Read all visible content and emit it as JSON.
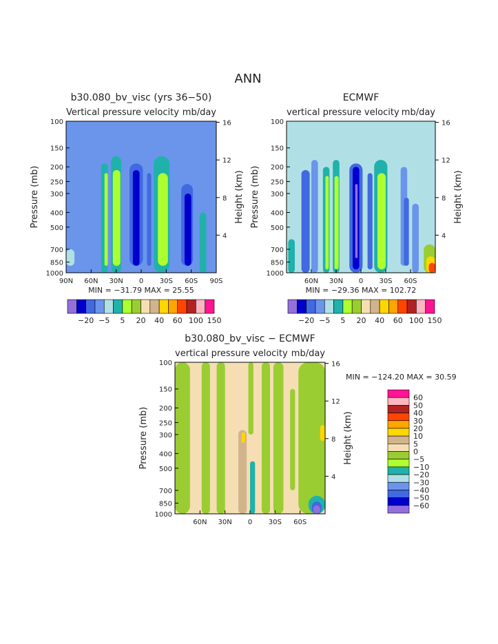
{
  "figure": {
    "title": "ANN"
  },
  "palettes": {
    "field": [
      "#9370DB",
      "#0000CD",
      "#4169E1",
      "#6A95EB",
      "#B0E0E6",
      "#20B2AA",
      "#ADFF2F",
      "#9ACD32",
      "#F5DEB3",
      "#D2B48C",
      "#FFD700",
      "#FFA500",
      "#FF4500",
      "#B22222",
      "#FFB6C1",
      "#FF1493"
    ],
    "diff": [
      "#9370DB",
      "#0000CD",
      "#4169E1",
      "#6A95EB",
      "#B0E0E6",
      "#20B2AA",
      "#ADFF2F",
      "#9ACD32",
      "#F5DEB3",
      "#D2B48C",
      "#FFD700",
      "#FFA500",
      "#FF4500",
      "#B22222",
      "#FFB6C1",
      "#FF1493"
    ]
  },
  "chart_data": [
    {
      "type": "heatmap",
      "title": "b30.080_bv_visc (yrs 36−50)",
      "subtitle_left": "Vertical pressure velocity",
      "subtitle_right": "mb/day",
      "ylabel": "Pressure (mb)",
      "ylabel_right": "Height (km)",
      "xlim": [
        90,
        -90
      ],
      "ylim": [
        1000,
        100
      ],
      "y_scale": "log",
      "xticks": [
        90,
        60,
        30,
        0,
        -30,
        -60,
        -90
      ],
      "xtick_labels": [
        "90N",
        "60N",
        "30N",
        "0",
        "30S",
        "60S",
        "90S"
      ],
      "yticks": [
        100,
        150,
        200,
        250,
        300,
        400,
        500,
        700,
        850,
        1000
      ],
      "right_ticks": [
        16,
        12,
        8,
        4
      ],
      "stats": "MIN = −31.79   MAX =  25.55",
      "colorbar": {
        "orientation": "horizontal",
        "labels": [
          "−20",
          "−5",
          "5",
          "20",
          "40",
          "60",
          "100",
          "150"
        ]
      },
      "bands": [
        {
          "lat": [
            90,
            80
          ],
          "c": 4,
          "p": [
            700,
            900
          ]
        },
        {
          "lat": [
            75,
            68
          ],
          "c": 3,
          "p": [
            250,
            1000
          ]
        },
        {
          "lat": [
            60,
            55
          ],
          "c": 3,
          "p": [
            300,
            1000
          ]
        },
        {
          "lat": [
            48,
            40
          ],
          "c": 5,
          "p": [
            190,
            1000
          ]
        },
        {
          "lat": [
            44,
            40
          ],
          "c": 6,
          "p": [
            220,
            900
          ]
        },
        {
          "lat": [
            36,
            24
          ],
          "c": 5,
          "p": [
            170,
            1000
          ]
        },
        {
          "lat": [
            34,
            25
          ],
          "c": 6,
          "p": [
            210,
            900
          ]
        },
        {
          "lat": [
            14,
            -2
          ],
          "c": 2,
          "p": [
            190,
            900
          ]
        },
        {
          "lat": [
            10,
            2
          ],
          "c": 1,
          "p": [
            210,
            900
          ]
        },
        {
          "lat": [
            -7,
            -12
          ],
          "c": 2,
          "p": [
            220,
            900
          ]
        },
        {
          "lat": [
            -15,
            -34
          ],
          "c": 5,
          "p": [
            170,
            1000
          ]
        },
        {
          "lat": [
            -20,
            -32
          ],
          "c": 6,
          "p": [
            220,
            900
          ]
        },
        {
          "lat": [
            -48,
            -62
          ],
          "c": 2,
          "p": [
            260,
            900
          ]
        },
        {
          "lat": [
            -52,
            -60
          ],
          "c": 1,
          "p": [
            300,
            900
          ]
        },
        {
          "lat": [
            -64,
            -72
          ],
          "c": 3,
          "p": [
            200,
            900
          ]
        },
        {
          "lat": [
            -70,
            -78
          ],
          "c": 5,
          "p": [
            400,
            1000
          ]
        }
      ]
    },
    {
      "type": "heatmap",
      "title": "ECMWF",
      "subtitle_left": "vertical pressure velocity",
      "subtitle_right": "mb/day",
      "ylabel": "Pressure (mb)",
      "ylabel_right": "Height (km)",
      "xlim": [
        90,
        -90
      ],
      "ylim": [
        1000,
        100
      ],
      "y_scale": "log",
      "xticks": [
        60,
        30,
        0,
        -30,
        -60
      ],
      "xtick_labels": [
        "60N",
        "30N",
        "0",
        "30S",
        "60S"
      ],
      "yticks": [
        100,
        150,
        200,
        250,
        300,
        400,
        500,
        700,
        850,
        1000
      ],
      "right_ticks": [
        16,
        12,
        8,
        4
      ],
      "stats": "MIN = −29.36   MAX = 102.72",
      "colorbar": {
        "orientation": "horizontal",
        "labels": [
          "−20",
          "−5",
          "5",
          "20",
          "40",
          "60",
          "100",
          "150"
        ]
      },
      "bands": [
        {
          "lat": [
            90,
            78
          ],
          "c": 4,
          "p": [
            180,
            1000
          ]
        },
        {
          "lat": [
            88,
            80
          ],
          "c": 5,
          "p": [
            600,
            1000
          ]
        },
        {
          "lat": [
            72,
            62
          ],
          "c": 2,
          "p": [
            210,
            1000
          ]
        },
        {
          "lat": [
            60,
            52
          ],
          "c": 3,
          "p": [
            180,
            1000
          ]
        },
        {
          "lat": [
            46,
            38
          ],
          "c": 5,
          "p": [
            200,
            1000
          ]
        },
        {
          "lat": [
            43,
            39
          ],
          "c": 6,
          "p": [
            230,
            950
          ]
        },
        {
          "lat": [
            34,
            26
          ],
          "c": 5,
          "p": [
            180,
            1000
          ]
        },
        {
          "lat": [
            32,
            27
          ],
          "c": 6,
          "p": [
            230,
            950
          ]
        },
        {
          "lat": [
            14,
            -2
          ],
          "c": 2,
          "p": [
            190,
            1000
          ]
        },
        {
          "lat": [
            10,
            2
          ],
          "c": 1,
          "p": [
            200,
            950
          ]
        },
        {
          "lat": [
            7,
            4
          ],
          "c": 0,
          "p": [
            260,
            800
          ]
        },
        {
          "lat": [
            -8,
            -14
          ],
          "c": 2,
          "p": [
            220,
            950
          ]
        },
        {
          "lat": [
            -16,
            -32
          ],
          "c": 5,
          "p": [
            180,
            1000
          ]
        },
        {
          "lat": [
            -20,
            -30
          ],
          "c": 6,
          "p": [
            220,
            950
          ]
        },
        {
          "lat": [
            -48,
            -56
          ],
          "c": 3,
          "p": [
            200,
            900
          ]
        },
        {
          "lat": [
            -52,
            -58
          ],
          "c": 2,
          "p": [
            320,
            900
          ]
        },
        {
          "lat": [
            -62,
            -70
          ],
          "c": 3,
          "p": [
            350,
            1000
          ]
        },
        {
          "lat": [
            -76,
            -90
          ],
          "c": 7,
          "p": [
            650,
            1000
          ]
        },
        {
          "lat": [
            -79,
            -90
          ],
          "c": 10,
          "p": [
            780,
            1000
          ]
        },
        {
          "lat": [
            -82,
            -90
          ],
          "c": 12,
          "p": [
            860,
            1000
          ]
        }
      ]
    },
    {
      "type": "heatmap",
      "title": "b30.080_bv_visc − ECMWF",
      "subtitle_left": "vertical pressure velocity",
      "subtitle_right": "mb/day",
      "ylabel": "Pressure (mb)",
      "ylabel_right": "Height (km)",
      "xlim": [
        90,
        -90
      ],
      "ylim": [
        1000,
        100
      ],
      "y_scale": "log",
      "xticks": [
        60,
        30,
        0,
        -30,
        -60
      ],
      "xtick_labels": [
        "60N",
        "30N",
        "0",
        "30S",
        "60S"
      ],
      "yticks": [
        100,
        150,
        200,
        250,
        300,
        400,
        500,
        700,
        850,
        1000
      ],
      "right_ticks": [
        16,
        12,
        8,
        4
      ],
      "stats": "MIN = −124.20   MAX =  30.59",
      "colorbar": {
        "orientation": "vertical",
        "labels": [
          "60",
          "50",
          "40",
          "30",
          "20",
          "10",
          "5",
          "0",
          "−5",
          "−10",
          "−20",
          "−30",
          "−40",
          "−50",
          "−60"
        ]
      },
      "bands": [
        {
          "lat": [
            90,
            72
          ],
          "c": 7,
          "p": [
            100,
            1000
          ]
        },
        {
          "lat": [
            58,
            48
          ],
          "c": 7,
          "p": [
            100,
            1000
          ]
        },
        {
          "lat": [
            40,
            30
          ],
          "c": 7,
          "p": [
            100,
            1000
          ]
        },
        {
          "lat": [
            14,
            4
          ],
          "c": 9,
          "p": [
            280,
            1000
          ]
        },
        {
          "lat": [
            10,
            6
          ],
          "c": 10,
          "p": [
            290,
            340
          ]
        },
        {
          "lat": [
            0,
            -6
          ],
          "c": 5,
          "p": [
            450,
            1000
          ]
        },
        {
          "lat": [
            2,
            -4
          ],
          "c": 7,
          "p": [
            100,
            300
          ]
        },
        {
          "lat": [
            -14,
            -24
          ],
          "c": 7,
          "p": [
            100,
            1000
          ]
        },
        {
          "lat": [
            -28,
            -40
          ],
          "c": 7,
          "p": [
            100,
            1000
          ]
        },
        {
          "lat": [
            -48,
            -54
          ],
          "c": 7,
          "p": [
            150,
            700
          ]
        },
        {
          "lat": [
            -58,
            -90
          ],
          "c": 7,
          "p": [
            100,
            1000
          ]
        },
        {
          "lat": [
            -84,
            -90
          ],
          "c": 10,
          "p": [
            260,
            330
          ]
        },
        {
          "lat": [
            -70,
            -90
          ],
          "c": 5,
          "p": [
            760,
            1000
          ]
        },
        {
          "lat": [
            -74,
            -86
          ],
          "c": 2,
          "p": [
            830,
            1000
          ]
        },
        {
          "lat": [
            -76,
            -84
          ],
          "c": 0,
          "p": [
            880,
            1000
          ]
        }
      ]
    }
  ]
}
